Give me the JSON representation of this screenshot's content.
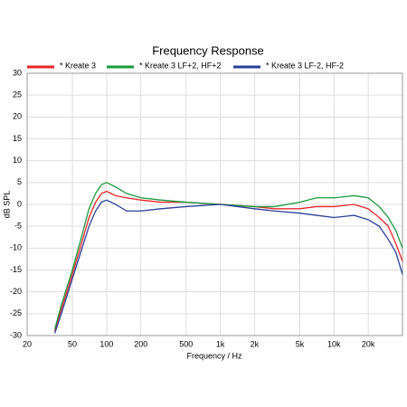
{
  "chart_data": {
    "type": "line",
    "title": "Frequency Response",
    "x_label": "Frequency / Hz",
    "y_label": "dB SPL",
    "x_scale": "log",
    "grid": true,
    "xlim": [
      20,
      40000
    ],
    "ylim": [
      -30,
      30
    ],
    "xticks": [
      20,
      50,
      100,
      200,
      500,
      {
        "value": 1000,
        "label": "1k"
      },
      {
        "value": 2000,
        "label": "2k"
      },
      {
        "value": 5000,
        "label": "5k"
      },
      {
        "value": 10000,
        "label": "10k"
      },
      {
        "value": 20000,
        "label": "20k"
      }
    ],
    "yticks": [
      -30,
      -25,
      -20,
      -15,
      -10,
      -5,
      0,
      5,
      10,
      15,
      20,
      25,
      30
    ],
    "x": [
      35,
      40,
      50,
      60,
      70,
      80,
      90,
      100,
      120,
      150,
      200,
      300,
      500,
      1000,
      2000,
      3000,
      5000,
      7000,
      10000,
      15000,
      20000,
      25000,
      30000,
      35000,
      40000
    ],
    "series": [
      {
        "name": "* Kreate 3",
        "color": "#e8262a",
        "values": [
          -29,
          -24,
          -16,
          -9,
          -3,
          0.5,
          2.5,
          3,
          2,
          1.5,
          1,
          0.5,
          0.5,
          0,
          -0.5,
          -1,
          -1,
          -0.5,
          -0.5,
          0,
          -1,
          -3,
          -5,
          -9,
          -13
        ]
      },
      {
        "name": "* Kreate 3 LF+2, HF+2",
        "color": "#1a9a3c",
        "values": [
          -28.5,
          -23,
          -15,
          -7.5,
          -1,
          2.5,
          4.5,
          5,
          4,
          2.5,
          1.5,
          1,
          0.5,
          0,
          -0.5,
          -0.5,
          0.5,
          1.5,
          1.5,
          2,
          1.5,
          -0.5,
          -3,
          -6,
          -10
        ]
      },
      {
        "name": "* Kreate 3 LF-2, HF-2",
        "color": "#2b3f99",
        "values": [
          -29.5,
          -25,
          -17,
          -10.5,
          -5,
          -1.5,
          0.5,
          1,
          0,
          -1.5,
          -1.5,
          -1,
          -0.5,
          0,
          -1,
          -1.5,
          -2,
          -2.5,
          -3,
          -2.5,
          -3.5,
          -5,
          -8,
          -11,
          -16
        ]
      }
    ]
  }
}
